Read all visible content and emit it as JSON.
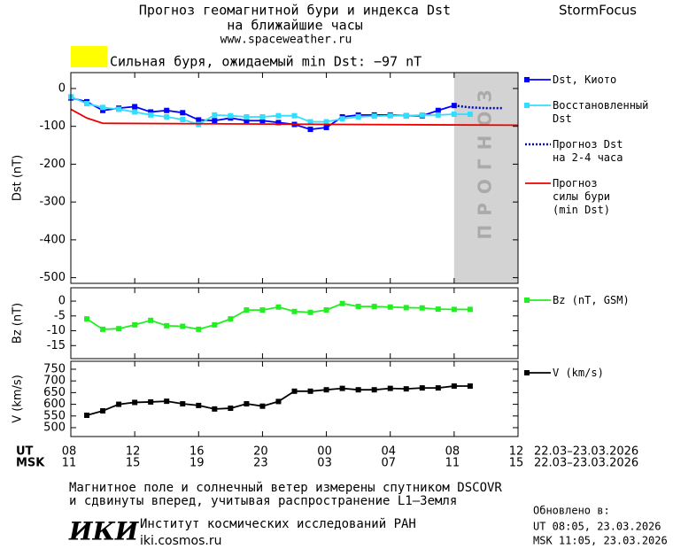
{
  "header": {
    "title": "Прогноз геомагнитной бури и индекса Dst",
    "subtitle": "на ближайшие часы",
    "url": "www.spaceweather.ru",
    "brand": "StormFocus"
  },
  "chart_data": [
    {
      "type": "line",
      "ylabel": "Dst (nT)",
      "ylim": [
        -515,
        42
      ],
      "yticks": [
        0,
        -100,
        -200,
        -300,
        -400,
        -500
      ],
      "xlim": [
        0,
        28
      ],
      "annotation": "Сильная буря, ожидаемый min Dst: −97 nT",
      "annotation_color": "#ffff00",
      "forecast_region": [
        24,
        28
      ],
      "forecast_label": "ПРОГНОЗ",
      "forecast_color": "#d3d3d3",
      "series": [
        {
          "name": "Dst, Киото",
          "color": "#0000ff",
          "marker": "square",
          "x": [
            0,
            1,
            2,
            3,
            4,
            5,
            6,
            7,
            8,
            9,
            10,
            11,
            12,
            13,
            14,
            15,
            16,
            17,
            18,
            19,
            20,
            21,
            22,
            23,
            24
          ],
          "values": [
            -25,
            -35,
            -58,
            -52,
            -48,
            -62,
            -58,
            -64,
            -83,
            -85,
            -78,
            -85,
            -85,
            -90,
            -95,
            -108,
            -103,
            -75,
            -70,
            -70,
            -70,
            -72,
            -72,
            -58,
            -45
          ]
        },
        {
          "name": "Восстановленный\nDst",
          "color": "#33ddff",
          "marker": "square",
          "x": [
            0,
            1,
            2,
            3,
            4,
            5,
            6,
            7,
            8,
            9,
            10,
            11,
            12,
            13,
            14,
            15,
            16,
            17,
            18,
            19,
            20,
            21,
            22,
            23,
            24,
            25
          ],
          "values": [
            -22,
            -40,
            -50,
            -55,
            -62,
            -70,
            -75,
            -82,
            -95,
            -70,
            -72,
            -75,
            -75,
            -72,
            -72,
            -88,
            -88,
            -80,
            -75,
            -73,
            -72,
            -72,
            -70,
            -70,
            -68,
            -68
          ]
        },
        {
          "name": "Прогноз Dst\nна 2-4 часа",
          "color": "#0000cc",
          "dash": "dotted",
          "x": [
            24,
            25,
            26,
            27
          ],
          "values": [
            -45,
            -50,
            -52,
            -52
          ]
        },
        {
          "name": "Прогноз\nсилы бури\n(min Dst)",
          "color": "#ee0000",
          "x": [
            0,
            1,
            2,
            28
          ],
          "values": [
            -55,
            -78,
            -92,
            -97
          ]
        }
      ]
    },
    {
      "type": "line",
      "ylabel": "Bz (nT)",
      "ylim": [
        -19.4,
        4.5
      ],
      "yticks": [
        0,
        -5,
        -10,
        -15
      ],
      "xlim": [
        0,
        28
      ],
      "series": [
        {
          "name": "Bz (nT, GSM)",
          "color": "#22ee22",
          "marker": "square",
          "x": [
            1,
            2,
            3,
            4,
            5,
            6,
            7,
            8,
            9,
            10,
            11,
            12,
            13,
            14,
            15,
            16,
            17,
            18,
            19,
            20,
            21,
            22,
            23,
            24,
            25
          ],
          "values": [
            -6,
            -9.5,
            -9.3,
            -8,
            -6.5,
            -8.3,
            -8.5,
            -9.5,
            -8,
            -6,
            -3,
            -3,
            -2,
            -3.5,
            -3.8,
            -3,
            -0.8,
            -1.8,
            -1.8,
            -2,
            -2.2,
            -2.3,
            -2.7,
            -2.8,
            -2.8
          ]
        }
      ]
    },
    {
      "type": "line",
      "ylabel": "V (km/s)",
      "ylim": [
        462,
        784
      ],
      "yticks": [
        750,
        700,
        650,
        600,
        550,
        500
      ],
      "xlim": [
        0,
        28
      ],
      "xticks": [
        {
          "value": 0,
          "label": "08"
        },
        {
          "value": 4,
          "label": "12"
        },
        {
          "value": 8,
          "label": "16"
        },
        {
          "value": 12,
          "label": "20"
        },
        {
          "value": 16,
          "label": "00"
        },
        {
          "value": 20,
          "label": "04"
        },
        {
          "value": 24,
          "label": "08"
        },
        {
          "value": 28,
          "label": "12"
        }
      ],
      "xticks_msk": [
        {
          "value": 0,
          "label": "11"
        },
        {
          "value": 4,
          "label": "15"
        },
        {
          "value": 8,
          "label": "19"
        },
        {
          "value": 12,
          "label": "23"
        },
        {
          "value": 16,
          "label": "03"
        },
        {
          "value": 20,
          "label": "07"
        },
        {
          "value": 24,
          "label": "11"
        },
        {
          "value": 28,
          "label": "15"
        }
      ],
      "x_row_labels": [
        "UT",
        "MSK"
      ],
      "x_range_labels": [
        "22.03–23.03.2026",
        "22.03–23.03.2026"
      ],
      "series": [
        {
          "name": "V (km/s)",
          "color": "#000000",
          "marker": "square",
          "x": [
            1,
            2,
            3,
            4,
            5,
            6,
            7,
            8,
            9,
            10,
            11,
            12,
            13,
            14,
            15,
            16,
            17,
            18,
            19,
            20,
            21,
            22,
            23,
            24,
            25
          ],
          "values": [
            553,
            572,
            600,
            608,
            610,
            613,
            602,
            595,
            580,
            583,
            602,
            592,
            612,
            656,
            656,
            662,
            668,
            662,
            662,
            668,
            666,
            670,
            670,
            678,
            678
          ]
        }
      ]
    }
  ],
  "footer": {
    "note": [
      "Магнитное поле и солнечный ветер измерены спутником DSCOVR",
      "и сдвинуты вперед, учитывая распространение L1–Земля"
    ],
    "logo": "ИКИ",
    "institute": "Институт космических исследований РАН",
    "site": "iki.cosmos.ru",
    "updated": [
      "Обновлено в:",
      "UT   08:05, 23.03.2026",
      "MSK 11:05, 23.03.2026"
    ]
  }
}
